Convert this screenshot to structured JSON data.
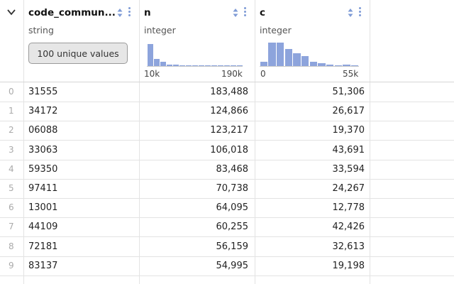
{
  "columns": [
    {
      "name": "code_commun...",
      "type": "string",
      "summary": "100 unique values"
    },
    {
      "name": "n",
      "type": "integer",
      "axis_min": "10k",
      "axis_max": "190k",
      "histogram": [
        0.85,
        0.28,
        0.16,
        0.06,
        0.05,
        0.03,
        0.02,
        0.02,
        0.01,
        0.01,
        0.01,
        0.01,
        0.01,
        0.01,
        0.01
      ]
    },
    {
      "name": "c",
      "type": "integer",
      "axis_min": "0",
      "axis_max": "55k",
      "histogram": [
        0.15,
        0.88,
        0.88,
        0.65,
        0.5,
        0.38,
        0.15,
        0.1,
        0.05,
        0.01,
        0.05,
        0.02
      ]
    }
  ],
  "rows": [
    {
      "index": "0",
      "code": "31555",
      "n": "183,488",
      "c": "51,306"
    },
    {
      "index": "1",
      "code": "34172",
      "n": "124,866",
      "c": "26,617"
    },
    {
      "index": "2",
      "code": "06088",
      "n": "123,217",
      "c": "19,370"
    },
    {
      "index": "3",
      "code": "33063",
      "n": "106,018",
      "c": "43,691"
    },
    {
      "index": "4",
      "code": "59350",
      "n": "83,468",
      "c": "33,594"
    },
    {
      "index": "5",
      "code": "97411",
      "n": "70,738",
      "c": "24,267"
    },
    {
      "index": "6",
      "code": "13001",
      "n": "64,095",
      "c": "12,778"
    },
    {
      "index": "7",
      "code": "44109",
      "n": "60,255",
      "c": "42,426"
    },
    {
      "index": "8",
      "code": "72181",
      "n": "56,159",
      "c": "32,613"
    },
    {
      "index": "9",
      "code": "83137",
      "n": "54,995",
      "c": "19,198"
    }
  ],
  "colors": {
    "accent": "#7f9bd6",
    "bar": "#8da4dc",
    "grid": "#e3e3e3"
  }
}
